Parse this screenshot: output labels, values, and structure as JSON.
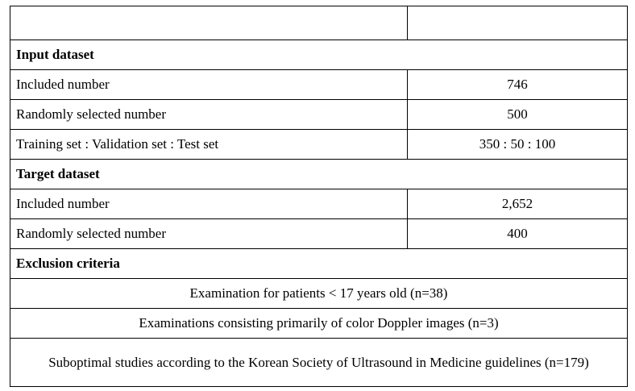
{
  "header": {
    "col1": "",
    "col2": ""
  },
  "input_dataset": {
    "title": "Input dataset",
    "rows": [
      {
        "label": "Included number",
        "value": "746"
      },
      {
        "label": "Randomly selected number",
        "value": "500"
      },
      {
        "label": "Training set : Validation set : Test set",
        "value": "350 : 50 : 100"
      }
    ]
  },
  "target_dataset": {
    "title": "Target dataset",
    "rows": [
      {
        "label": "Included number",
        "value": "2,652"
      },
      {
        "label": "Randomly selected number",
        "value": "400"
      }
    ]
  },
  "exclusion_criteria": {
    "title": "Exclusion criteria",
    "items": [
      "Examination for patients < 17 years old (n=38)",
      "Examinations consisting primarily of color Doppler images (n=3)",
      "Suboptimal studies according to the Korean Society of Ultrasound in Medicine guidelines (n=179)"
    ]
  }
}
